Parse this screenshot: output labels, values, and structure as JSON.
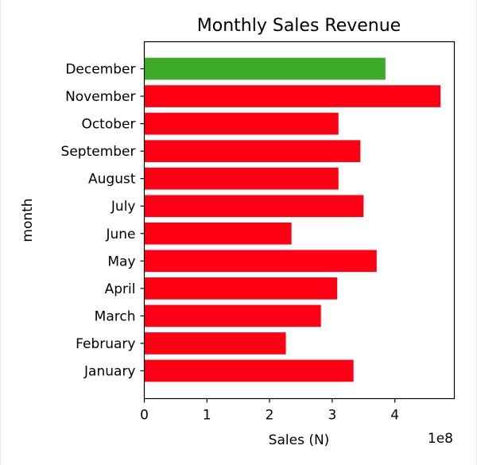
{
  "chart_data": {
    "type": "bar",
    "orientation": "horizontal",
    "title": "Monthly Sales Revenue",
    "xlabel": "Sales (N)",
    "ylabel": "month",
    "x_offset_label": "1e8",
    "xlim": [
      0,
      4.95
    ],
    "xticks": [
      "0",
      "1",
      "2",
      "3",
      "4"
    ],
    "x_unit_scale": 100000000,
    "grid": false,
    "categories": [
      "January",
      "February",
      "March",
      "April",
      "May",
      "June",
      "July",
      "August",
      "September",
      "October",
      "November",
      "December"
    ],
    "values": [
      334000000,
      226000000,
      282000000,
      308000000,
      371000000,
      235000000,
      350000000,
      310000000,
      345000000,
      310000000,
      473000000,
      385000000
    ],
    "colors": [
      "#ff0015",
      "#ff0015",
      "#ff0015",
      "#ff0015",
      "#ff0015",
      "#ff0015",
      "#ff0015",
      "#ff0015",
      "#ff0015",
      "#ff0015",
      "#ff0015",
      "#3cab2a"
    ]
  }
}
